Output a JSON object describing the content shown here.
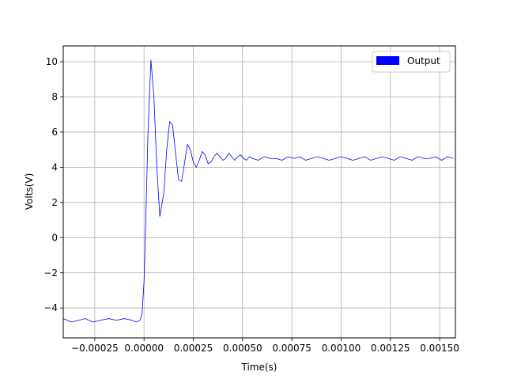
{
  "chart_data": {
    "type": "line",
    "title": "",
    "xlabel": "Time(s)",
    "ylabel": "Volts(V)",
    "xlim": [
      -0.00041,
      0.00158
    ],
    "ylim": [
      -5.7,
      10.9
    ],
    "grid": true,
    "legend_position": "top-right",
    "x_ticks": [
      -0.00025,
      0.0,
      0.00025,
      0.0005,
      0.00075,
      0.001,
      0.00125,
      0.0015
    ],
    "x_tick_labels": [
      "−0.00025",
      "0.00000",
      "0.00025",
      "0.00050",
      "0.00075",
      "0.00100",
      "0.00125",
      "0.00150"
    ],
    "y_ticks": [
      -4,
      -2,
      0,
      2,
      4,
      6,
      8,
      10
    ],
    "y_tick_labels": [
      "−4",
      "−2",
      "0",
      "2",
      "4",
      "6",
      "8",
      "10"
    ],
    "series": [
      {
        "name": "Output",
        "color": "#0000ff",
        "x": [
          -0.00041,
          -0.00037,
          -0.00033,
          -0.0003,
          -0.00026,
          -0.00022,
          -0.00018,
          -0.00014,
          -0.0001,
          -6e-05,
          -4e-05,
          -2e-05,
          -1e-05,
          0.0,
          1e-05,
          2e-05,
          3.5e-05,
          5e-05,
          6.5e-05,
          8e-05,
          0.0001,
          0.000115,
          0.00013,
          0.000145,
          0.00016,
          0.000175,
          0.00019,
          0.000205,
          0.00022,
          0.000235,
          0.00025,
          0.000265,
          0.00028,
          0.000295,
          0.00031,
          0.000325,
          0.00034,
          0.000355,
          0.00037,
          0.000385,
          0.0004,
          0.000415,
          0.00043,
          0.000445,
          0.00046,
          0.000475,
          0.00049,
          0.000505,
          0.00052,
          0.000535,
          0.00055,
          0.00058,
          0.00061,
          0.00064,
          0.00067,
          0.0007,
          0.00073,
          0.00076,
          0.00079,
          0.00082,
          0.00085,
          0.00088,
          0.00091,
          0.00094,
          0.00097,
          0.001,
          0.00103,
          0.00106,
          0.00109,
          0.00112,
          0.00115,
          0.00118,
          0.00121,
          0.00124,
          0.00127,
          0.0013,
          0.00133,
          0.00136,
          0.00139,
          0.00142,
          0.00145,
          0.00148,
          0.00151,
          0.00154,
          0.00157
        ],
        "y": [
          -4.6,
          -4.8,
          -4.7,
          -4.6,
          -4.8,
          -4.7,
          -4.6,
          -4.7,
          -4.6,
          -4.7,
          -4.8,
          -4.7,
          -4.3,
          -2.5,
          1.5,
          6.0,
          10.1,
          8.0,
          4.0,
          1.2,
          2.5,
          5.0,
          6.6,
          6.4,
          4.8,
          3.3,
          3.2,
          4.2,
          5.3,
          5.0,
          4.3,
          4.0,
          4.4,
          4.9,
          4.7,
          4.2,
          4.3,
          4.6,
          4.8,
          4.6,
          4.4,
          4.5,
          4.8,
          4.6,
          4.4,
          4.6,
          4.7,
          4.5,
          4.4,
          4.6,
          4.5,
          4.4,
          4.6,
          4.5,
          4.5,
          4.4,
          4.6,
          4.5,
          4.6,
          4.4,
          4.5,
          4.6,
          4.5,
          4.4,
          4.5,
          4.6,
          4.5,
          4.4,
          4.5,
          4.6,
          4.4,
          4.5,
          4.6,
          4.5,
          4.4,
          4.6,
          4.5,
          4.4,
          4.6,
          4.5,
          4.5,
          4.6,
          4.4,
          4.6,
          4.5
        ]
      }
    ]
  }
}
